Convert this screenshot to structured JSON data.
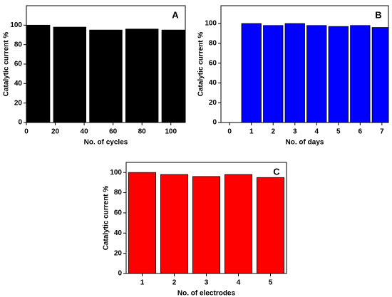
{
  "chart_data": [
    {
      "type": "bar",
      "annotation": "A",
      "xlabel": "No. of cycles",
      "ylabel": "Catalytic current %",
      "x": [
        5,
        30,
        55,
        80,
        105
      ],
      "values": [
        100,
        98,
        95,
        96,
        95
      ],
      "color": "#000000",
      "xlim": [
        0,
        110
      ],
      "xticks": [
        0,
        20,
        40,
        60,
        80,
        100
      ],
      "ylim": [
        0,
        120
      ],
      "yticks": [
        0,
        20,
        40,
        60,
        80,
        100
      ]
    },
    {
      "type": "bar",
      "annotation": "B",
      "xlabel": "No. of days",
      "ylabel": "Catalytic current %",
      "x": [
        1,
        2,
        3,
        4,
        5,
        6,
        7
      ],
      "values": [
        100,
        98,
        100,
        98,
        97,
        98,
        96
      ],
      "color": "#0000ff",
      "xlim": [
        -0.4,
        7.3
      ],
      "xticks": [
        0,
        1,
        2,
        3,
        4,
        5,
        6,
        7
      ],
      "ylim": [
        0,
        118
      ],
      "yticks": [
        0,
        20,
        40,
        60,
        80,
        100
      ]
    },
    {
      "type": "bar",
      "annotation": "C",
      "xlabel": "No. of electrodes",
      "ylabel": "Catalytic current %",
      "categories": [
        "1",
        "2",
        "3",
        "4",
        "5"
      ],
      "values": [
        100,
        98,
        96,
        98,
        95
      ],
      "color": "#ff0000",
      "ylim": [
        0,
        110
      ],
      "yticks": [
        0,
        20,
        40,
        60,
        80,
        100
      ]
    }
  ]
}
